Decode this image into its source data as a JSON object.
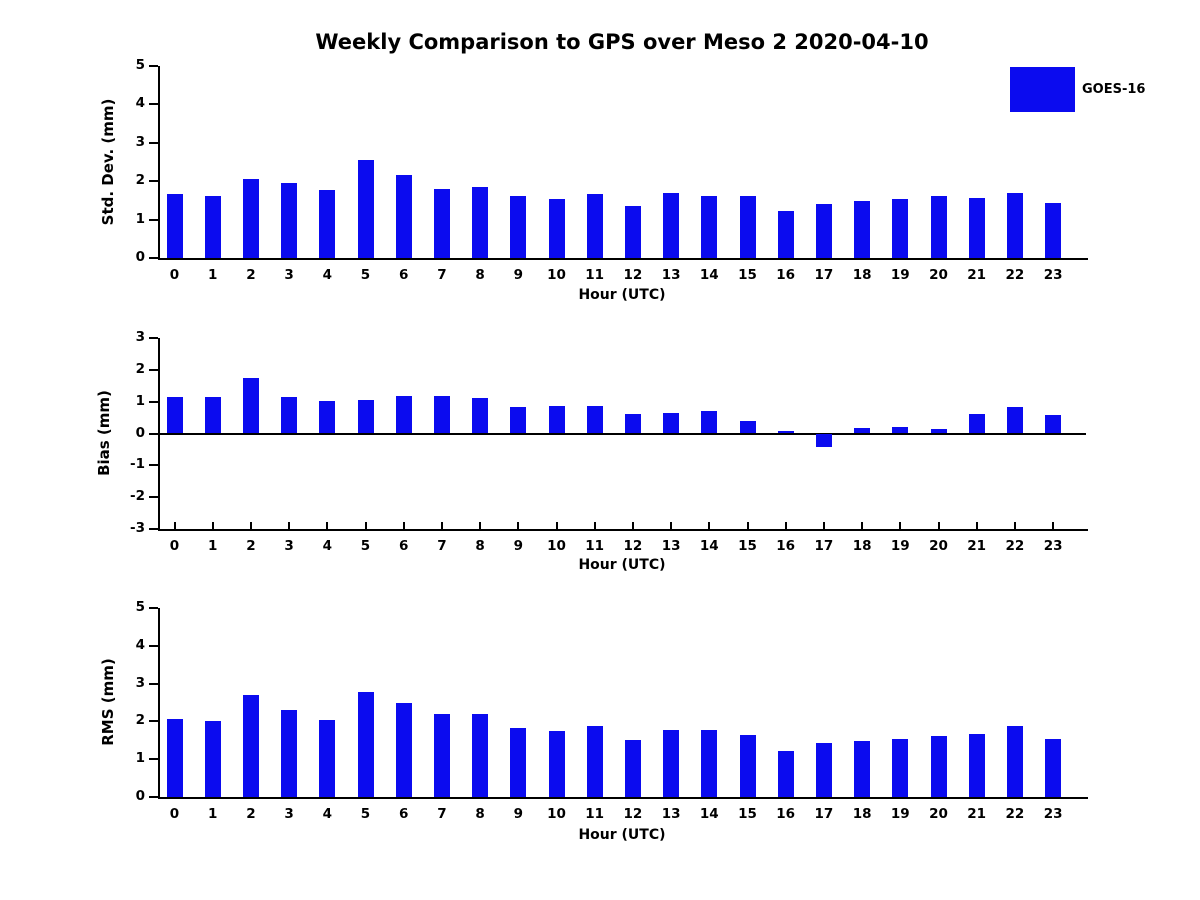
{
  "title": "Weekly Comparison to GPS over Meso 2 2020-04-10",
  "legend": {
    "label": "GOES-16",
    "position": "top-right"
  },
  "colors": {
    "bar": "#0b0bef",
    "axis": "#000000",
    "text": "#000000",
    "background": "#ffffff"
  },
  "chart_data": [
    {
      "type": "bar",
      "panel": "std-dev",
      "ylabel": "Std. Dev. (mm)",
      "xlabel": "Hour (UTC)",
      "categories": [
        "0",
        "1",
        "2",
        "3",
        "4",
        "5",
        "6",
        "7",
        "8",
        "9",
        "10",
        "11",
        "12",
        "13",
        "14",
        "15",
        "16",
        "17",
        "18",
        "19",
        "20",
        "21",
        "22",
        "23"
      ],
      "values": [
        1.66,
        1.61,
        2.05,
        1.95,
        1.76,
        2.55,
        2.16,
        1.79,
        1.85,
        1.61,
        1.54,
        1.66,
        1.36,
        1.69,
        1.62,
        1.62,
        1.22,
        1.41,
        1.48,
        1.53,
        1.61,
        1.56,
        1.7,
        1.43
      ],
      "ylim": [
        0,
        5
      ],
      "yticks": [
        5,
        4,
        3,
        2,
        1,
        0
      ],
      "grid": false,
      "series_name": "GOES-16"
    },
    {
      "type": "bar",
      "panel": "bias",
      "ylabel": "Bias (mm)",
      "xlabel": "Hour (UTC)",
      "categories": [
        "0",
        "1",
        "2",
        "3",
        "4",
        "5",
        "6",
        "7",
        "8",
        "9",
        "10",
        "11",
        "12",
        "13",
        "14",
        "15",
        "16",
        "17",
        "18",
        "19",
        "20",
        "21",
        "22",
        "23"
      ],
      "values": [
        1.15,
        1.15,
        1.74,
        1.15,
        1.03,
        1.06,
        1.19,
        1.19,
        1.12,
        0.82,
        0.86,
        0.85,
        0.6,
        0.63,
        0.72,
        0.38,
        0.08,
        -0.41,
        0.17,
        0.2,
        0.13,
        0.62,
        0.84,
        0.57
      ],
      "ylim": [
        -3,
        3
      ],
      "yticks": [
        3,
        2,
        1,
        0,
        -1,
        -2,
        -3
      ],
      "grid": false,
      "series_name": "GOES-16"
    },
    {
      "type": "bar",
      "panel": "rms",
      "ylabel": "RMS (mm)",
      "xlabel": "Hour (UTC)",
      "categories": [
        "0",
        "1",
        "2",
        "3",
        "4",
        "5",
        "6",
        "7",
        "8",
        "9",
        "10",
        "11",
        "12",
        "13",
        "14",
        "15",
        "16",
        "17",
        "18",
        "19",
        "20",
        "21",
        "22",
        "23"
      ],
      "values": [
        2.06,
        2.01,
        2.71,
        2.29,
        2.05,
        2.78,
        2.48,
        2.19,
        2.2,
        1.82,
        1.75,
        1.88,
        1.51,
        1.78,
        1.76,
        1.65,
        1.21,
        1.44,
        1.47,
        1.54,
        1.62,
        1.67,
        1.88,
        1.54
      ],
      "ylim": [
        0,
        5
      ],
      "yticks": [
        5,
        4,
        3,
        2,
        1,
        0
      ],
      "grid": false,
      "series_name": "GOES-16"
    }
  ]
}
